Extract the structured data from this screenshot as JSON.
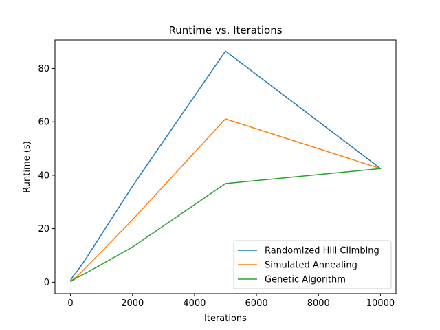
{
  "chart_data": {
    "type": "line",
    "title": "Runtime vs. Iterations",
    "xlabel": "Iterations",
    "ylabel": "Runtime (s)",
    "xlim": [
      -500,
      10500
    ],
    "ylim": [
      -4.3,
      90.7
    ],
    "xticks": [
      0,
      2000,
      4000,
      6000,
      8000,
      10000
    ],
    "yticks": [
      0,
      20,
      40,
      60,
      80
    ],
    "grid": false,
    "legend_position": "lower-right",
    "x": [
      10,
      100,
      200,
      500,
      1000,
      2000,
      5000,
      10000
    ],
    "series": [
      {
        "name": "Randomized Hill Climbing",
        "color": "#1f77b4",
        "values": [
          0.8,
          2.5,
          3.8,
          8.8,
          17.8,
          35.9,
          86.5,
          42.5
        ]
      },
      {
        "name": "Simulated Annealing",
        "color": "#ff7f0e",
        "values": [
          0.5,
          1.2,
          2.0,
          5.5,
          11.4,
          23.3,
          61.1,
          42.5
        ]
      },
      {
        "name": "Genetic Algorithm",
        "color": "#2ca02c",
        "values": [
          0.2,
          0.9,
          1.6,
          3.4,
          6.6,
          13.1,
          36.9,
          42.5
        ]
      }
    ]
  }
}
